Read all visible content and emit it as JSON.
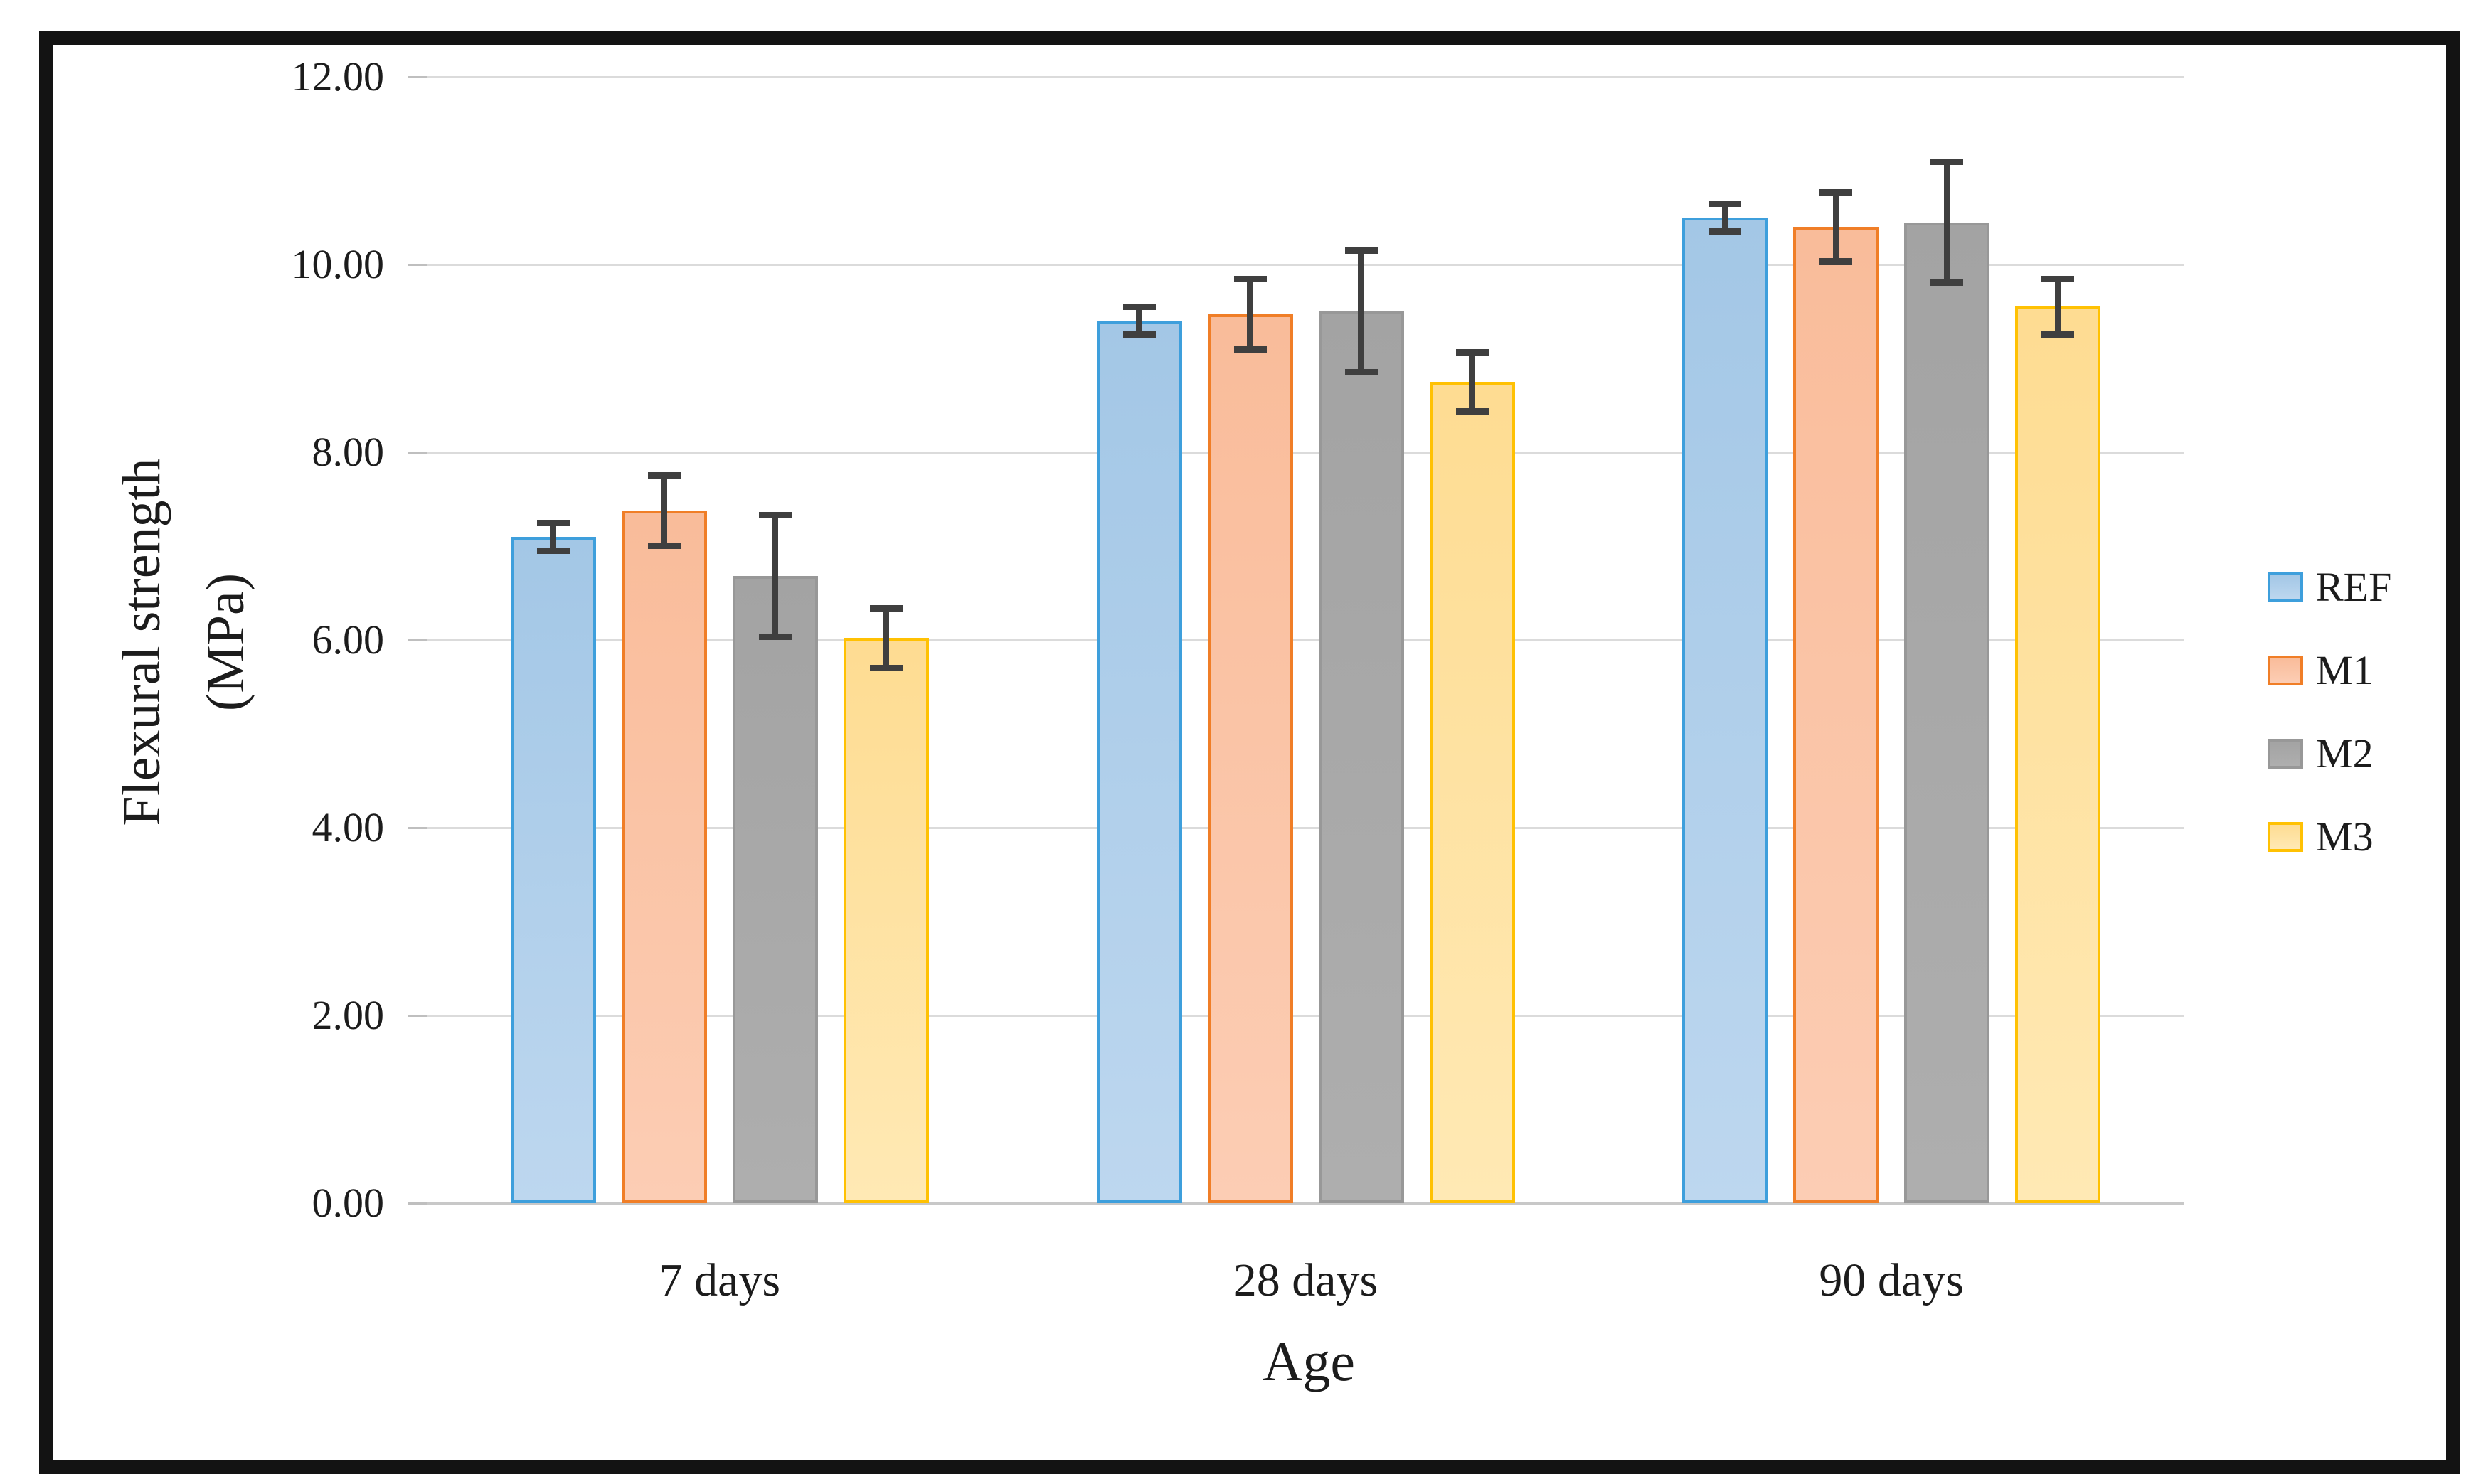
{
  "figure": {
    "background": "#ffffff",
    "frame_border_color": "#131313"
  },
  "chart_data": {
    "type": "bar",
    "title": "",
    "xlabel": "Age",
    "ylabel": "Flexural strength (MPa)",
    "ylabel_lines": [
      "Flexural strength",
      "(MPa)"
    ],
    "categories": [
      "7 days",
      "28 days",
      "90 days"
    ],
    "series": [
      {
        "name": "REF",
        "fill_top": "#a3c7e6",
        "fill_bottom": "#bdd7ef",
        "border": "#3e9fdc",
        "values": [
          7.1,
          9.4,
          10.5
        ],
        "errors": [
          0.15,
          0.15,
          0.15
        ]
      },
      {
        "name": "M1",
        "fill_top": "#f9bc9a",
        "fill_bottom": "#fccdb4",
        "border": "#f07e27",
        "values": [
          7.38,
          9.47,
          10.4
        ],
        "errors": [
          0.38,
          0.38,
          0.37
        ]
      },
      {
        "name": "M2",
        "fill_top": "#a3a3a3",
        "fill_bottom": "#aeaeae",
        "border": "#989898",
        "values": [
          6.68,
          9.5,
          10.45
        ],
        "errors": [
          0.65,
          0.65,
          0.65
        ]
      },
      {
        "name": "M3",
        "fill_top": "#fedc92",
        "fill_bottom": "#ffe9b4",
        "border": "#ffc103",
        "values": [
          6.02,
          8.75,
          9.55
        ],
        "errors": [
          0.32,
          0.32,
          0.3
        ]
      }
    ],
    "y_ticks": [
      "12.00",
      "10.00",
      "8.00",
      "6.00",
      "4.00",
      "2.00",
      "0.00"
    ],
    "ylim": [
      0,
      12
    ],
    "grid": true,
    "legend_position": "right",
    "error_bar_color": "#3f3f3f",
    "gridline_color": "#dbdbdb",
    "axis_line_color": "#c8c8c8",
    "text_color": "#1c1c1c"
  }
}
